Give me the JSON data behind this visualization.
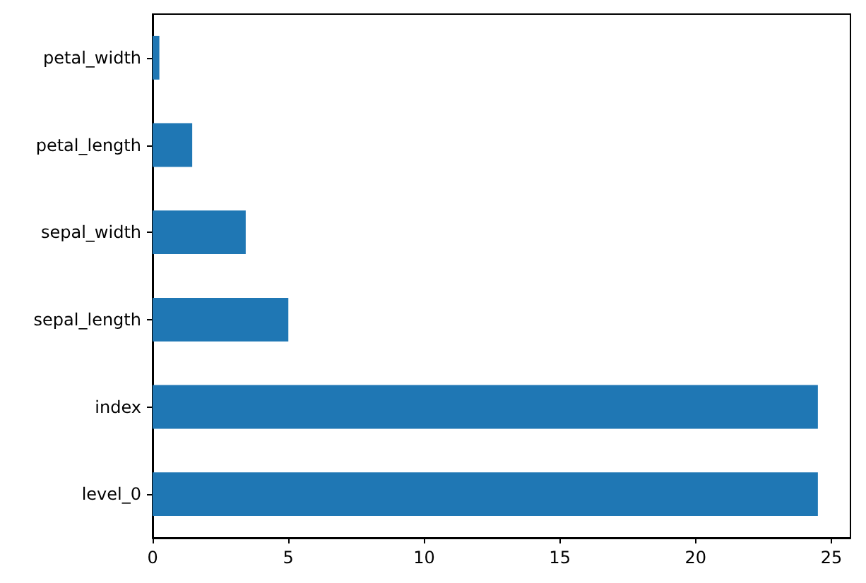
{
  "chart_data": {
    "type": "bar",
    "orientation": "horizontal",
    "categories": [
      "petal_width",
      "petal_length",
      "sepal_width",
      "sepal_length",
      "index",
      "level_0"
    ],
    "values": [
      0.25,
      1.46,
      3.43,
      5.0,
      24.5,
      24.5
    ],
    "color": "#1f77b4",
    "xlim": [
      0,
      25.7
    ],
    "xticks": [
      0,
      5,
      10,
      15,
      20,
      25
    ],
    "grid": false
  }
}
